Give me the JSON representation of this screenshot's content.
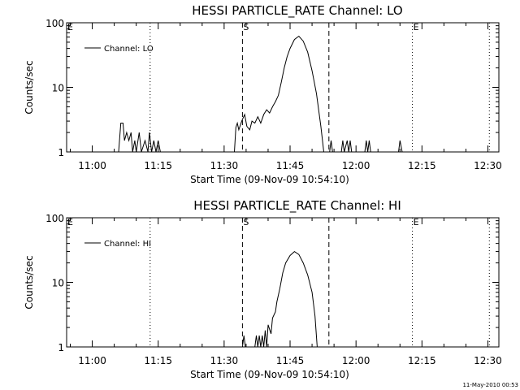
{
  "footer": {
    "timestamp": "11-May-2010 00:53"
  },
  "chart_data": [
    {
      "type": "line",
      "title": "HESSI PARTICLE_RATE Channel: LO",
      "xlabel": "Start Time (09-Nov-09 10:54:10)",
      "ylabel": "Counts/sec",
      "yscale": "log",
      "ylim": [
        1,
        100
      ],
      "xlim": [
        "10:54:10",
        "12:32:30"
      ],
      "xticks": [
        "11:00",
        "11:15",
        "11:30",
        "11:45",
        "12:00",
        "12:15",
        "12:30"
      ],
      "yticks": [
        "1",
        "10",
        "100"
      ],
      "legend": {
        "label": "Channel: LO",
        "placement": "top-left"
      },
      "markers": [
        {
          "label": "E",
          "time": "10:54:10",
          "style": "dotted"
        },
        {
          "label": "",
          "time": "11:13:10",
          "style": "dotted"
        },
        {
          "label": "S",
          "time": "11:34:10",
          "style": "dashed"
        },
        {
          "label": "",
          "time": "11:53:50",
          "style": "dashed"
        },
        {
          "label": "E",
          "time": "12:12:50",
          "style": "dotted"
        },
        {
          "label": "",
          "time": "12:30:20",
          "style": "dotted"
        }
      ],
      "series": [
        {
          "name": "Channel: LO",
          "segments": [
            [
              [
                "11:06:00",
                1
              ],
              [
                "11:06:30",
                2.8
              ],
              [
                "11:07:00",
                2.8
              ],
              [
                "11:07:20",
                1.5
              ],
              [
                "11:07:50",
                2.0
              ],
              [
                "11:08:20",
                1.5
              ],
              [
                "11:08:50",
                2.0
              ],
              [
                "11:09:10",
                1
              ],
              [
                "11:09:40",
                1.5
              ],
              [
                "11:10:00",
                1
              ],
              [
                "11:10:40",
                2
              ],
              [
                "11:11:10",
                1
              ],
              [
                "11:12:00",
                1.5
              ],
              [
                "11:12:40",
                1
              ],
              [
                "11:13:00",
                2
              ],
              [
                "11:13:30",
                1
              ],
              [
                "11:14:00",
                1.5
              ],
              [
                "11:14:30",
                1
              ],
              [
                "11:15:00",
                1.5
              ],
              [
                "11:15:30",
                1
              ]
            ],
            [
              [
                "11:32:20",
                1
              ],
              [
                "11:32:40",
                2.4
              ],
              [
                "11:33:00",
                2.8
              ],
              [
                "11:33:20",
                2.2
              ],
              [
                "11:34:00",
                3.0
              ],
              [
                "11:34:40",
                3.8
              ],
              [
                "11:35:10",
                2.5
              ],
              [
                "11:35:50",
                2.2
              ],
              [
                "11:36:20",
                3.0
              ],
              [
                "11:37:00",
                2.8
              ],
              [
                "11:37:40",
                3.5
              ],
              [
                "11:38:20",
                2.8
              ],
              [
                "11:39:00",
                3.8
              ],
              [
                "11:39:40",
                4.5
              ],
              [
                "11:40:20",
                4.0
              ],
              [
                "11:41:00",
                5.0
              ],
              [
                "11:41:40",
                6.0
              ],
              [
                "11:42:20",
                7.5
              ],
              [
                "11:43:00",
                12
              ],
              [
                "11:43:40",
                20
              ],
              [
                "11:44:20",
                30
              ],
              [
                "11:45:00",
                40
              ],
              [
                "11:46:00",
                55
              ],
              [
                "11:47:00",
                62
              ],
              [
                "11:48:00",
                52
              ],
              [
                "11:49:00",
                35
              ],
              [
                "11:50:00",
                18
              ],
              [
                "11:51:00",
                8
              ],
              [
                "11:52:00",
                2.5
              ],
              [
                "11:52:40",
                1
              ]
            ],
            [
              [
                "11:54:00",
                1
              ],
              [
                "11:54:20",
                1.5
              ],
              [
                "11:54:40",
                1
              ]
            ],
            [
              [
                "11:56:40",
                1
              ],
              [
                "11:57:00",
                1.5
              ],
              [
                "11:57:20",
                1
              ],
              [
                "11:58:00",
                1.5
              ],
              [
                "11:58:20",
                1
              ],
              [
                "11:58:40",
                1.5
              ],
              [
                "11:59:00",
                1
              ]
            ],
            [
              [
                "12:02:00",
                1
              ],
              [
                "12:02:20",
                1.5
              ],
              [
                "12:02:40",
                1
              ],
              [
                "12:03:00",
                1.5
              ],
              [
                "12:03:20",
                1
              ]
            ],
            [
              [
                "12:09:40",
                1
              ],
              [
                "12:10:00",
                1.5
              ],
              [
                "12:10:30",
                1
              ]
            ]
          ]
        }
      ]
    },
    {
      "type": "line",
      "title": "HESSI PARTICLE_RATE Channel: HI",
      "xlabel": "Start Time (09-Nov-09 10:54:10)",
      "ylabel": "Counts/sec",
      "yscale": "log",
      "ylim": [
        1,
        100
      ],
      "xlim": [
        "10:54:10",
        "12:32:30"
      ],
      "xticks": [
        "11:00",
        "11:15",
        "11:30",
        "11:45",
        "12:00",
        "12:15",
        "12:30"
      ],
      "yticks": [
        "1",
        "10",
        "100"
      ],
      "legend": {
        "label": "Channel: HI",
        "placement": "top-left"
      },
      "markers": [
        {
          "label": "E",
          "time": "10:54:10",
          "style": "dotted"
        },
        {
          "label": "",
          "time": "11:13:10",
          "style": "dotted"
        },
        {
          "label": "S",
          "time": "11:34:10",
          "style": "dashed"
        },
        {
          "label": "",
          "time": "11:53:50",
          "style": "dashed"
        },
        {
          "label": "E",
          "time": "12:12:50",
          "style": "dotted"
        },
        {
          "label": "",
          "time": "12:30:20",
          "style": "dotted"
        }
      ],
      "series": [
        {
          "name": "Channel: HI",
          "segments": [
            [
              [
                "11:34:10",
                1
              ],
              [
                "11:34:30",
                1.5
              ],
              [
                "11:34:50",
                1
              ]
            ],
            [
              [
                "11:37:00",
                1
              ],
              [
                "11:37:20",
                1.5
              ],
              [
                "11:37:40",
                1
              ],
              [
                "11:38:00",
                1.5
              ],
              [
                "11:38:20",
                1
              ],
              [
                "11:38:40",
                1.5
              ],
              [
                "11:39:00",
                1
              ],
              [
                "11:39:20",
                1.8
              ],
              [
                "11:39:40",
                1
              ],
              [
                "11:40:00",
                2.2
              ],
              [
                "11:40:40",
                1.6
              ],
              [
                "11:41:00",
                2.8
              ],
              [
                "11:41:40",
                3.5
              ],
              [
                "11:42:00",
                5
              ],
              [
                "11:42:40",
                8
              ],
              [
                "11:43:20",
                14
              ],
              [
                "11:44:00",
                20
              ],
              [
                "11:45:00",
                26
              ],
              [
                "11:46:00",
                30
              ],
              [
                "11:47:00",
                27
              ],
              [
                "11:48:00",
                20
              ],
              [
                "11:49:00",
                13
              ],
              [
                "11:50:00",
                7
              ],
              [
                "11:50:40",
                3
              ],
              [
                "11:51:10",
                1
              ]
            ]
          ]
        }
      ]
    }
  ]
}
